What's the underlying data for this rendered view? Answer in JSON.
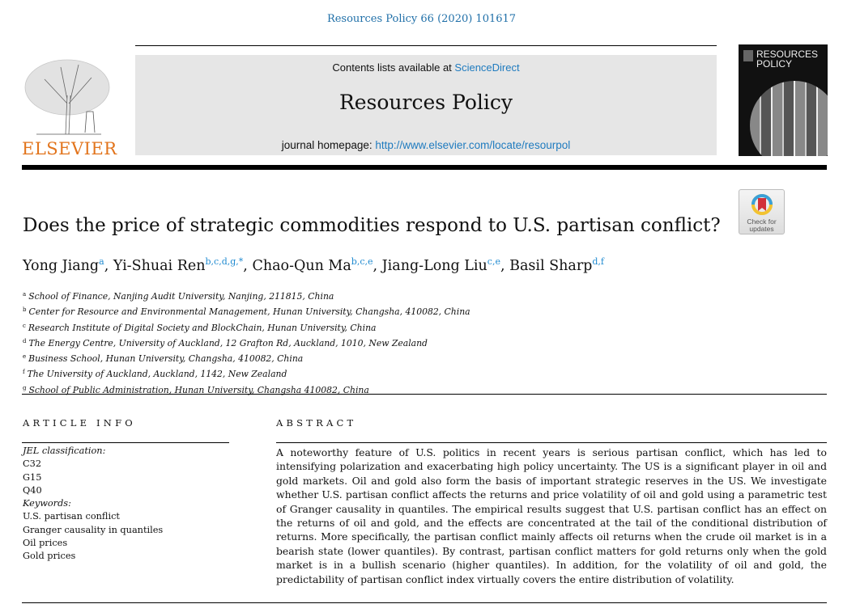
{
  "journal_ref": "Resources Policy 66 (2020) 101617",
  "header": {
    "contents_prefix": "Contents lists available at ",
    "contents_link": "ScienceDirect",
    "journal_title": "Resources Policy",
    "homepage_prefix": "journal homepage: ",
    "homepage_link": "http://www.elsevier.com/locate/resourpol",
    "publisher": "ELSEVIER",
    "cover_title_1": "RESOURCES",
    "cover_title_2": "POLICY",
    "badge_1": "Check for",
    "badge_2": "updates"
  },
  "title": "Does the price of strategic commodities respond to U.S. partisan conflict?",
  "authors": [
    {
      "name": "Yong Jiang",
      "aff": "a"
    },
    {
      "name": "Yi-Shuai Ren",
      "aff": "b,c,d,g,*"
    },
    {
      "name": "Chao-Qun Ma",
      "aff": "b,c,e"
    },
    {
      "name": "Jiang-Long Liu",
      "aff": "c,e"
    },
    {
      "name": "Basil Sharp",
      "aff": "d,f"
    }
  ],
  "affiliations": [
    {
      "key": "a",
      "text": "School of Finance, Nanjing Audit University, Nanjing, 211815, China"
    },
    {
      "key": "b",
      "text": "Center for Resource and Environmental Management, Hunan University, Changsha, 410082, China"
    },
    {
      "key": "c",
      "text": "Research Institute of Digital Society and BlockChain, Hunan University, China"
    },
    {
      "key": "d",
      "text": "The Energy Centre, University of Auckland, 12 Grafton Rd, Auckland, 1010, New Zealand"
    },
    {
      "key": "e",
      "text": "Business School, Hunan University, Changsha, 410082, China"
    },
    {
      "key": "f",
      "text": "The University of Auckland, Auckland, 1142, New Zealand"
    },
    {
      "key": "g",
      "text": "School of Public Administration, Hunan University, Changsha 410082, China"
    }
  ],
  "article_info": {
    "heading": "ARTICLE INFO",
    "jel_label": "JEL classification:",
    "jel": [
      "C32",
      "G15",
      "Q40"
    ],
    "keywords_label": "Keywords:",
    "keywords": [
      "U.S. partisan conflict",
      "Granger causality in quantiles",
      "Oil prices",
      "Gold prices"
    ]
  },
  "abstract": {
    "heading": "ABSTRACT",
    "text": "A noteworthy feature of U.S. politics in recent years is serious partisan conflict, which has led to intensifying polarization and exacerbating high policy uncertainty. The US is a significant player in oil and gold markets. Oil and gold also form the basis of important strategic reserves in the US. We investigate whether U.S. partisan conflict affects the returns and price volatility of oil and gold using a parametric test of Granger causality in quantiles. The empirical results suggest that U.S. partisan conflict has an effect on the returns of oil and gold, and the effects are concentrated at the tail of the conditional distribution of returns. More specifically, the partisan conflict mainly affects oil returns when the crude oil market is in a bearish state (lower quantiles). By contrast, partisan conflict matters for gold returns only when the gold market is in a bullish scenario (higher quantiles). In addition, for the volatility of oil and gold, the predictability of partisan conflict index virtually covers the entire distribution of volatility."
  }
}
